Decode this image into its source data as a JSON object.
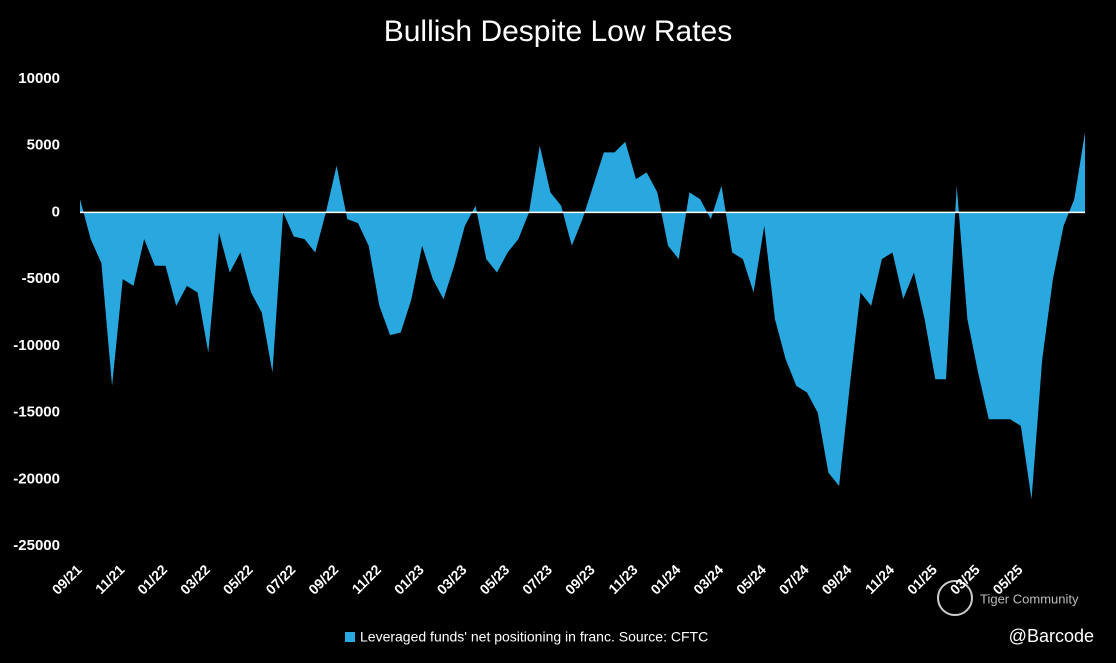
{
  "chart_data": {
    "type": "area",
    "title": "Bullish Despite Low Rates",
    "categories": [
      "09/21",
      null,
      null,
      null,
      "11/21",
      null,
      null,
      null,
      "01/22",
      null,
      null,
      null,
      "03/22",
      null,
      null,
      null,
      "05/22",
      null,
      null,
      null,
      "07/22",
      null,
      null,
      null,
      "09/22",
      null,
      null,
      null,
      "11/22",
      null,
      null,
      null,
      "01/23",
      null,
      null,
      null,
      "03/23",
      null,
      null,
      null,
      "05/23",
      null,
      null,
      null,
      "07/23",
      null,
      null,
      null,
      "09/23",
      null,
      null,
      null,
      "11/23",
      null,
      null,
      null,
      "01/24",
      null,
      null,
      null,
      "03/24",
      null,
      null,
      null,
      "05/24",
      null,
      null,
      null,
      "07/24",
      null,
      null,
      null,
      "09/24",
      null,
      null,
      null,
      "11/24",
      null,
      null,
      null,
      "01/25",
      null,
      null,
      null,
      "03/25",
      null,
      null,
      null,
      "05/25",
      null,
      null,
      null,
      null,
      null,
      null
    ],
    "series": [
      {
        "name": "Leveraged funds' net positioning in franc. Source: CFTC",
        "color": "#29a8e0",
        "values": [
          1000,
          -2000,
          -3800,
          -13000,
          -5000,
          -5500,
          -2000,
          -4000,
          -4000,
          -7000,
          -5500,
          -6000,
          -10500,
          -1500,
          -4500,
          -3000,
          -6000,
          -7500,
          -12000,
          0,
          -1800,
          -2000,
          -3000,
          0,
          3500,
          -500,
          -800,
          -2500,
          -7000,
          -9200,
          -9000,
          -6500,
          -2500,
          -5000,
          -6500,
          -4000,
          -1000,
          500,
          -3500,
          -4500,
          -3000,
          -2000,
          0,
          5000,
          1500,
          500,
          -2500,
          -500,
          2000,
          4500,
          4500,
          5300,
          2500,
          3000,
          1500,
          -2500,
          -3500,
          1500,
          1000,
          -500,
          2000,
          -3000,
          -3500,
          -6000,
          -1000,
          -8000,
          -11000,
          -13000,
          -13500,
          -15000,
          -19500,
          -20500,
          -13000,
          -6000,
          -7000,
          -3500,
          -3000,
          -6500,
          -4500,
          -8000,
          -12500,
          -12500,
          2000,
          -8000,
          -12000,
          -15500,
          -15500,
          -15500,
          -16000,
          -21500,
          -11000,
          -5000,
          -1000,
          1000,
          6000
        ]
      }
    ],
    "ylim": [
      -25000,
      10000
    ],
    "yticks": [
      -25000,
      -20000,
      -15000,
      -10000,
      -5000,
      0,
      5000,
      10000
    ],
    "grid": false,
    "legend": "bottom"
  },
  "watermarks": [
    "Tiger Community",
    "@Barcode"
  ]
}
